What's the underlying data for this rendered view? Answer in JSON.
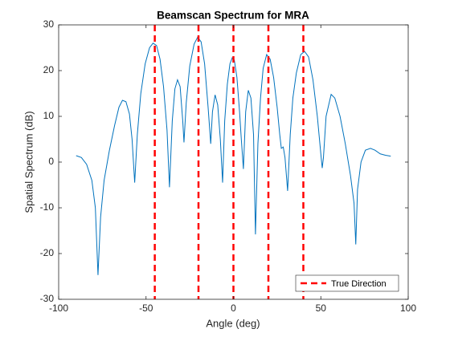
{
  "chart_data": {
    "type": "line",
    "title": "Beamscan Spectrum for MRA",
    "xlabel": "Angle (deg)",
    "ylabel": "Spatial Spectrum (dB)",
    "color": "#0072bd",
    "x": [
      -90,
      -87,
      -84,
      -81,
      -79,
      -77.5,
      -76,
      -74,
      -71,
      -68,
      -65.5,
      -63.5,
      -61.5,
      -59.5,
      -58,
      -56.5,
      -55,
      -53,
      -50.5,
      -48,
      -46,
      -44,
      -42,
      -40,
      -38,
      -36.6,
      -35,
      -33.5,
      -32,
      -30.5,
      -29,
      -28.3,
      -27,
      -25,
      -22.5,
      -20.5,
      -18.5,
      -16.5,
      -14.5,
      -13,
      -12,
      -10.5,
      -9,
      -7.5,
      -6.2,
      -5,
      -3.5,
      -2,
      -0.7,
      0.5,
      2,
      3.5,
      4.5,
      5.7,
      7,
      8.5,
      10,
      11.5,
      12.6,
      14,
      15.5,
      17,
      19,
      21,
      23,
      25,
      26.5,
      27.4,
      28.5,
      29.5,
      31,
      32.5,
      34,
      36,
      38.5,
      40.7,
      43,
      45.5,
      48,
      50.2,
      50.8,
      51.5,
      53,
      55.9,
      58,
      61,
      64,
      67,
      69,
      70,
      71,
      73,
      75.5,
      78.4,
      81,
      84,
      87,
      90
    ],
    "values": [
      1.4,
      1.0,
      -0.5,
      -4,
      -10,
      -24.7,
      -12,
      -4,
      2.5,
      8,
      12,
      13.5,
      13.2,
      10.5,
      5,
      -4.5,
      6,
      15,
      21.5,
      25,
      26,
      25.5,
      22.5,
      16.5,
      7,
      -5.5,
      9,
      16,
      18,
      16.5,
      9,
      4.3,
      13,
      21,
      25.8,
      27.3,
      26.3,
      21.5,
      12,
      4,
      11,
      14.7,
      12.5,
      5,
      -4.5,
      9,
      17,
      21.5,
      22.8,
      22.3,
      18.5,
      11,
      5,
      -1.5,
      11,
      15.7,
      14,
      6,
      -15.8,
      4,
      14,
      20.5,
      23.5,
      22.5,
      18.5,
      12,
      6,
      3,
      3.3,
      1,
      -6.3,
      6,
      14,
      19.5,
      23.5,
      24.2,
      23,
      18,
      10,
      1,
      -1.3,
      1,
      10,
      14.8,
      14,
      10,
      4,
      -3,
      -9,
      -18,
      -6,
      0,
      2.6,
      3,
      2.6,
      1.8,
      1.5,
      1.3
    ],
    "true_directions": {
      "name": "True Direction",
      "color": "#ff0000",
      "x": [
        -45,
        -20,
        0,
        20,
        40
      ]
    },
    "xlim": [
      -100,
      100
    ],
    "xticks": [
      -100,
      -50,
      0,
      50,
      100
    ],
    "ylim": [
      -30,
      30
    ],
    "yticks": [
      -30,
      -20,
      -10,
      0,
      10,
      20,
      30
    ],
    "legend": "southeast"
  }
}
